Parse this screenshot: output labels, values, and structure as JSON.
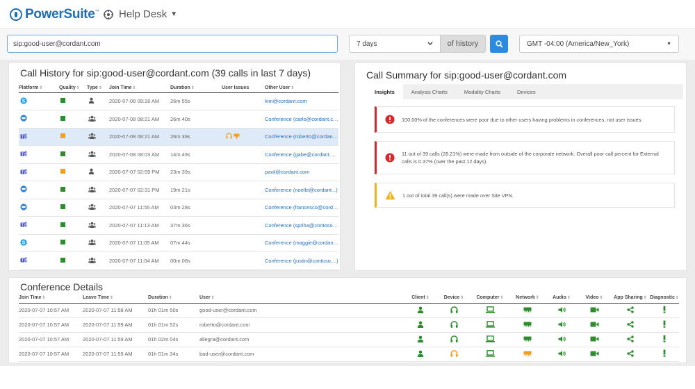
{
  "app": {
    "name": "PowerSuite",
    "module": "Help Desk"
  },
  "search": {
    "value": "sip:good-user@cordant.com"
  },
  "history": {
    "range": "7 days",
    "suffix": "of history"
  },
  "timezone": {
    "value": "GMT -04:00 (America/New_York)"
  },
  "call_history": {
    "title": "Call History for sip:good-user@cordant.com (39 calls in last 7 days)",
    "columns": [
      "Platform",
      "Quality",
      "Type",
      "Join Time",
      "Duration",
      "User Issues",
      "Other User"
    ],
    "rows": [
      {
        "platform": "skype",
        "quality": "green",
        "type": "user",
        "join_time": "2020-07-08 09:18 AM",
        "duration": "26m 55s",
        "issues": "",
        "other_user": "kim@cordant.com"
      },
      {
        "platform": "webex",
        "quality": "green",
        "type": "group",
        "join_time": "2020-07-08 08:21 AM",
        "duration": "26m 40s",
        "issues": "",
        "other_user": "Conference (carlo@cordant.c...)"
      },
      {
        "platform": "teams",
        "quality": "orange",
        "type": "group",
        "join_time": "2020-07-08 08:21 AM",
        "duration": "26m 39s",
        "issues": "headset+network",
        "other_user": "Conference (roberto@cordant...)"
      },
      {
        "platform": "teams",
        "quality": "green",
        "type": "group",
        "join_time": "2020-07-08 08:03 AM",
        "duration": "14m 49s",
        "issues": "",
        "other_user": "Conference (gabe@cordant.c...)"
      },
      {
        "platform": "teams",
        "quality": "orange",
        "type": "user",
        "join_time": "2020-07-07 02:59 PM",
        "duration": "23m 39s",
        "issues": "",
        "other_user": "pavil@cordant.com"
      },
      {
        "platform": "webex",
        "quality": "green",
        "type": "group",
        "join_time": "2020-07-07 02:31 PM",
        "duration": "19m 21s",
        "issues": "",
        "other_user": "Conference (noelle@cordant...)"
      },
      {
        "platform": "webex",
        "quality": "green",
        "type": "group",
        "join_time": "2020-07-07 11:55 AM",
        "duration": "03m 28s",
        "issues": "",
        "other_user": "Conference (francesco@cord...)"
      },
      {
        "platform": "teams",
        "quality": "green",
        "type": "group",
        "join_time": "2020-07-07 11:13 AM",
        "duration": "37m 36s",
        "issues": "",
        "other_user": "Conference (spriha@contoso...)"
      },
      {
        "platform": "skype",
        "quality": "green",
        "type": "group",
        "join_time": "2020-07-07 11:05 AM",
        "duration": "07m 44s",
        "issues": "",
        "other_user": "Conference (maggie@cordant...)"
      },
      {
        "platform": "teams",
        "quality": "green",
        "type": "group",
        "join_time": "2020-07-07 11:04 AM",
        "duration": "00m 08s",
        "issues": "",
        "other_user": "Conference (justin@contoso....)"
      }
    ]
  },
  "call_summary": {
    "title": "Call Summary for sip:good-user@cordant.com",
    "tabs": [
      "Insights",
      "Analysis Charts",
      "Modality Charts",
      "Devices"
    ],
    "alerts": [
      {
        "level": "error",
        "text": "100.00% of the conferences were poor due to other users having problems in conferences, not user issues."
      },
      {
        "level": "error",
        "text": "11 out of 39 calls (28.21%) were made from outside of the corporate network. Overall poor call percent for External calls is 0.37% (over the past 12 days)."
      },
      {
        "level": "warning",
        "text": "1 out of total 39 call(s) were made over Site VPN."
      }
    ]
  },
  "conference_details": {
    "title": "Conference Details",
    "columns": [
      "Join Time",
      "Leave Time",
      "Duration",
      "User",
      "Client",
      "Device",
      "Computer",
      "Network",
      "Audio",
      "Video",
      "App Sharing",
      "Diagnostic"
    ],
    "rows": [
      {
        "join": "2020-07-07 10:57 AM",
        "leave": "2020-07-07 11:58 AM",
        "duration": "01h 01m 50s",
        "user": "good-user@cordant.com",
        "device_color": "#2e8b2e",
        "network_color": "#2e8b2e"
      },
      {
        "join": "2020-07-07 10:57 AM",
        "leave": "2020-07-07 11:59 AM",
        "duration": "01h 01m 52s",
        "user": "roberto@cordant.com",
        "device_color": "#2e8b2e",
        "network_color": "#2e8b2e"
      },
      {
        "join": "2020-07-07 10:57 AM",
        "leave": "2020-07-07 11:59 AM",
        "duration": "01h 02m 04s",
        "user": "allegra@cordant.com",
        "device_color": "#2e8b2e",
        "network_color": "#2e8b2e"
      },
      {
        "join": "2020-07-07 10:57 AM",
        "leave": "2020-07-07 11:59 AM",
        "duration": "01h 01m 34s",
        "user": "bad-user@cordant.com",
        "device_color": "#f0a020",
        "network_color": "#f0a020"
      }
    ]
  },
  "colors": {
    "accent": "#2a8be0",
    "brand": "#1e6fb8",
    "good": "#2e8b2e",
    "warn": "#f0a020",
    "bad": "#d62828"
  }
}
